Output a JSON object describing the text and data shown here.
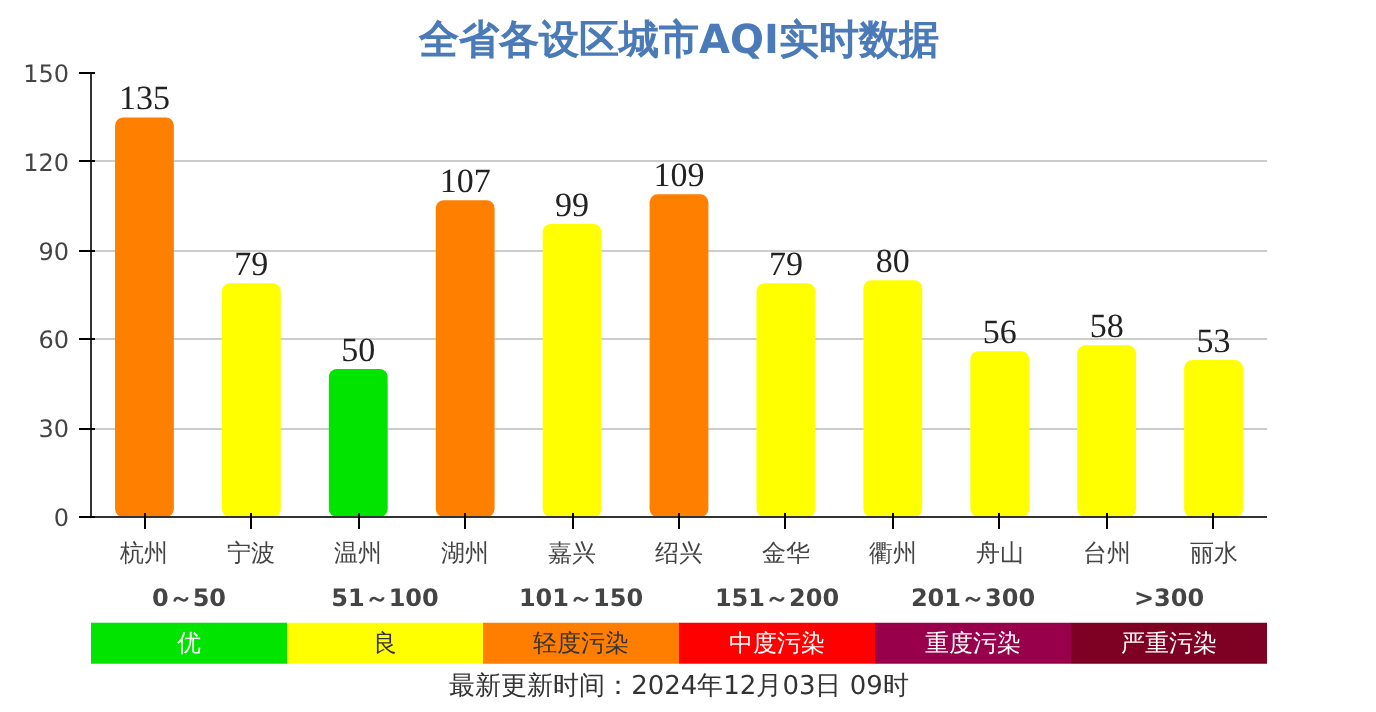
{
  "chart_data": [
    {
      "type": "bar",
      "title": "全省各设区城市AQI实时数据",
      "categories": [
        "杭州",
        "宁波",
        "温州",
        "湖州",
        "嘉兴",
        "绍兴",
        "金华",
        "衢州",
        "舟山",
        "台州",
        "丽水"
      ],
      "values": [
        135,
        79,
        50,
        107,
        99,
        109,
        79,
        80,
        56,
        58,
        53
      ],
      "colors": [
        "#ff7f00",
        "#ffff00",
        "#00e400",
        "#ff7f00",
        "#ffff00",
        "#ff7f00",
        "#ffff00",
        "#ffff00",
        "#ffff00",
        "#ffff00",
        "#ffff00"
      ],
      "ylim": [
        0,
        150
      ],
      "yticks": [
        0,
        30,
        60,
        90,
        120,
        150
      ],
      "grid": "y",
      "data_labels": true
    },
    {
      "type": "other",
      "categories": [
        "优",
        "良",
        "轻度污染",
        "中度污染",
        "重度污染",
        "严重污染"
      ],
      "colors": [
        "#00e400",
        "#ffff00",
        "#ff7e00",
        "#ff0000",
        "#99004c",
        "#7e0023"
      ],
      "annotations": [
        {
          "text": "0～50",
          "x": "优"
        },
        {
          "text": "51～100",
          "x": "良"
        },
        {
          "text": "101～150",
          "x": "轻度污染"
        },
        {
          "text": "151～200",
          "x": "中度污染"
        },
        {
          "text": "201～300",
          "x": "重度污染"
        },
        {
          "text": ">300",
          "x": "严重污染"
        },
        "最新更新时间：2024年12月03日 09时"
      ]
    }
  ]
}
